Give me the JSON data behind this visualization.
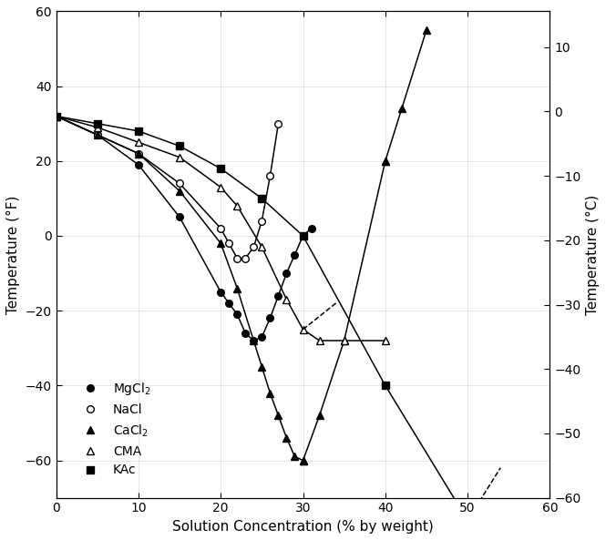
{
  "xlabel": "Solution Concentration (% by weight)",
  "ylabel_left": "Temperature (°F)",
  "ylabel_right": "Temperature (°C)",
  "xlim": [
    0,
    60
  ],
  "ylim_F": [
    -70,
    60
  ],
  "MgCl2": {
    "x": [
      0,
      5,
      10,
      15,
      20,
      21,
      22,
      23,
      24,
      25,
      26,
      27,
      28,
      29,
      30,
      31
    ],
    "y": [
      32,
      27,
      19,
      5,
      -15,
      -18,
      -21,
      -26,
      -28,
      -27,
      -22,
      -16,
      -10,
      -5,
      0,
      2
    ]
  },
  "NaCl": {
    "x": [
      0,
      5,
      10,
      15,
      20,
      21,
      22,
      23,
      24,
      25,
      26,
      27
    ],
    "y": [
      32,
      27,
      22,
      14,
      2,
      -2,
      -6,
      -6,
      -3,
      4,
      16,
      30
    ]
  },
  "CaCl2_freeze": {
    "x": [
      0,
      5,
      10,
      15,
      20,
      22,
      24,
      25,
      26,
      27,
      28,
      29,
      30
    ],
    "y": [
      32,
      27,
      22,
      12,
      -2,
      -14,
      -28,
      -35,
      -42,
      -48,
      -54,
      -59,
      -60
    ]
  },
  "CaCl2_melt": {
    "x": [
      30,
      32,
      35,
      40
    ],
    "y": [
      -60,
      -48,
      -28,
      20
    ]
  },
  "CaCl2_high": {
    "x": [
      40,
      42,
      45
    ],
    "y": [
      20,
      34,
      55
    ]
  },
  "CMA": {
    "x": [
      0,
      5,
      10,
      15,
      20,
      22,
      25,
      28,
      30,
      32,
      35,
      40
    ],
    "y": [
      32,
      29,
      25,
      21,
      13,
      8,
      -3,
      -17,
      -25,
      -28,
      -28,
      -28
    ]
  },
  "KAc": {
    "x": [
      0,
      5,
      10,
      15,
      20,
      25,
      30,
      40,
      50
    ],
    "y": [
      32,
      30,
      28,
      24,
      18,
      10,
      0,
      -40,
      -76
    ]
  },
  "KAc_dashed": {
    "x": [
      50,
      54
    ],
    "y": [
      -76,
      -62
    ]
  },
  "CMA_dashed": {
    "x": [
      30,
      34
    ],
    "y": [
      -25,
      -18
    ]
  },
  "right_yticks": [
    -60,
    -50,
    -40,
    -30,
    -20,
    -10,
    0,
    10
  ],
  "left_yticks": [
    -60,
    -40,
    -20,
    0,
    20,
    40,
    60
  ],
  "xticks": [
    0,
    10,
    20,
    30,
    40,
    50,
    60
  ]
}
